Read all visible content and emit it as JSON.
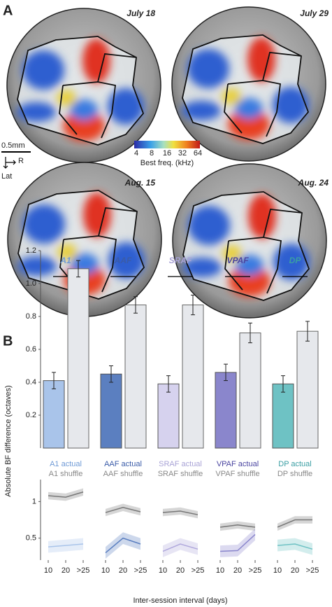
{
  "panel_a": {
    "label": "A",
    "dates": [
      "July 18",
      "July 29",
      "Aug. 15",
      "Aug. 24"
    ],
    "scale_bar": "0.5mm",
    "orientation": [
      "R",
      "Lat"
    ],
    "colorbar": {
      "ticks": [
        4,
        8,
        16,
        32,
        64
      ],
      "label": "Best freq. (kHz)"
    }
  },
  "panel_b": {
    "label": "B",
    "y_label": "Absolute BF difference (octaves)",
    "x_label": "Inter-session interval (days)",
    "bar_chart": {
      "type": "bar",
      "ylim": [
        0,
        1.2
      ],
      "yticks": [
        0.2,
        0.4,
        0.6,
        0.8,
        {
          "value": 1,
          "label": "1.0"
        },
        1.2
      ],
      "groups": [
        {
          "name": "A1",
          "color": "#a9c4ea",
          "label_color": "#6f9ad6",
          "actual": 0.41,
          "actual_err": 0.05,
          "shuffle": 1.09,
          "shuffle_err": 0.05,
          "actual_label": "A1 actual",
          "shuffle_label": "A1 shuffle"
        },
        {
          "name": "AAF",
          "color": "#5b7fc0",
          "label_color": "#3a5ba8",
          "actual": 0.45,
          "actual_err": 0.05,
          "shuffle": 0.87,
          "shuffle_err": 0.05,
          "actual_label": "AAF actual",
          "shuffle_label": "AAF shuffle"
        },
        {
          "name": "SRAF",
          "color": "#d6d2ee",
          "label_color": "#a9a3d6",
          "actual": 0.39,
          "actual_err": 0.05,
          "shuffle": 0.87,
          "shuffle_err": 0.06,
          "actual_label": "SRAF actual",
          "shuffle_label": "SRAF shuffle"
        },
        {
          "name": "VPAF",
          "color": "#8a86cc",
          "label_color": "#4a45a0",
          "actual": 0.46,
          "actual_err": 0.05,
          "shuffle": 0.7,
          "shuffle_err": 0.06,
          "actual_label": "VPAF actual",
          "shuffle_label": "VPAF shuffle"
        },
        {
          "name": "DP",
          "color": "#6ec2c4",
          "label_color": "#3a9ea3",
          "actual": 0.39,
          "actual_err": 0.05,
          "shuffle": 0.71,
          "shuffle_err": 0.06,
          "actual_label": "DP actual",
          "shuffle_label": "DP shuffle"
        }
      ]
    },
    "line_chart": {
      "type": "line",
      "categories": [
        "10",
        "20",
        ">25"
      ],
      "ylim": [
        0.2,
        1.3
      ],
      "yticks": [
        0.5,
        1
      ],
      "shuffle_color": "#777777",
      "band": 0.05,
      "actual_band": 0.08,
      "groups": [
        {
          "shuffle": [
            1.08,
            1.06,
            1.13
          ],
          "actual": [
            0.38,
            0.4,
            0.42
          ]
        },
        {
          "shuffle": [
            0.85,
            0.92,
            0.86
          ],
          "actual": [
            0.3,
            0.5,
            0.42
          ]
        },
        {
          "shuffle": [
            0.85,
            0.87,
            0.82
          ],
          "actual": [
            0.32,
            0.42,
            0.35
          ]
        },
        {
          "shuffle": [
            0.65,
            0.68,
            0.65
          ],
          "actual": [
            0.32,
            0.33,
            0.55
          ]
        },
        {
          "shuffle": [
            0.65,
            0.75,
            0.75
          ],
          "actual": [
            0.4,
            0.42,
            0.35
          ]
        }
      ]
    }
  }
}
